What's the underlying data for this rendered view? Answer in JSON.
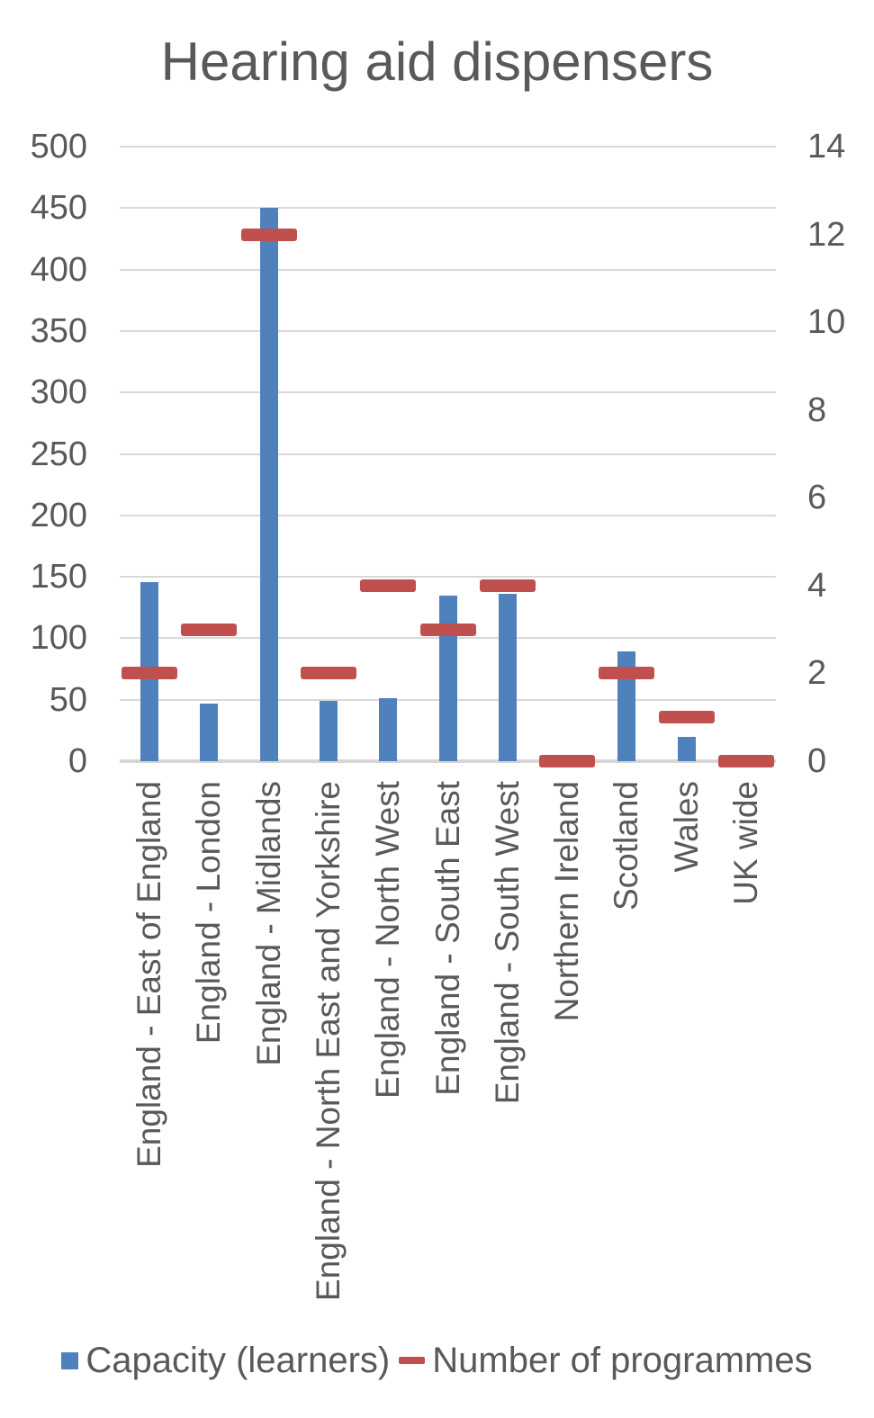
{
  "title": "Hearing aid dispensers",
  "chart_data": {
    "type": "bar",
    "title": "Hearing aid dispensers",
    "categories": [
      "England - East of England",
      "England - London",
      "England - Midlands",
      "England - North East and Yorkshire",
      "England - North West",
      "England - South East",
      "England - South West",
      "Northern Ireland",
      "Scotland",
      "Wales",
      "UK wide"
    ],
    "series": [
      {
        "name": "Capacity (learners)",
        "type": "bar",
        "axis": "left",
        "color": "#4f81bd",
        "values": [
          146,
          47,
          450,
          49,
          51,
          135,
          136,
          0,
          89,
          20,
          0
        ]
      },
      {
        "name": "Number of programmes",
        "type": "dash",
        "axis": "right",
        "color": "#c0504d",
        "values": [
          2,
          3,
          12,
          2,
          4,
          3,
          4,
          0,
          2,
          1,
          0
        ]
      }
    ],
    "left_axis": {
      "min": 0,
      "max": 500,
      "tick_step": 50,
      "tick_labels": [
        "0",
        "50",
        "100",
        "150",
        "200",
        "250",
        "300",
        "350",
        "400",
        "450",
        "500"
      ]
    },
    "right_axis": {
      "min": 0,
      "max": 14,
      "tick_step": 2,
      "tick_labels": [
        "0",
        "2",
        "4",
        "6",
        "8",
        "10",
        "12",
        "14"
      ]
    },
    "grid": true,
    "gridline_color": "#d9d9d9",
    "legend_position": "bottom",
    "text_color": "#595959"
  },
  "legend": {
    "items": [
      {
        "label": "Capacity (learners)",
        "color": "#4f81bd",
        "marker": "square"
      },
      {
        "label": "Number of programmes",
        "color": "#c0504d",
        "marker": "dash"
      }
    ]
  }
}
